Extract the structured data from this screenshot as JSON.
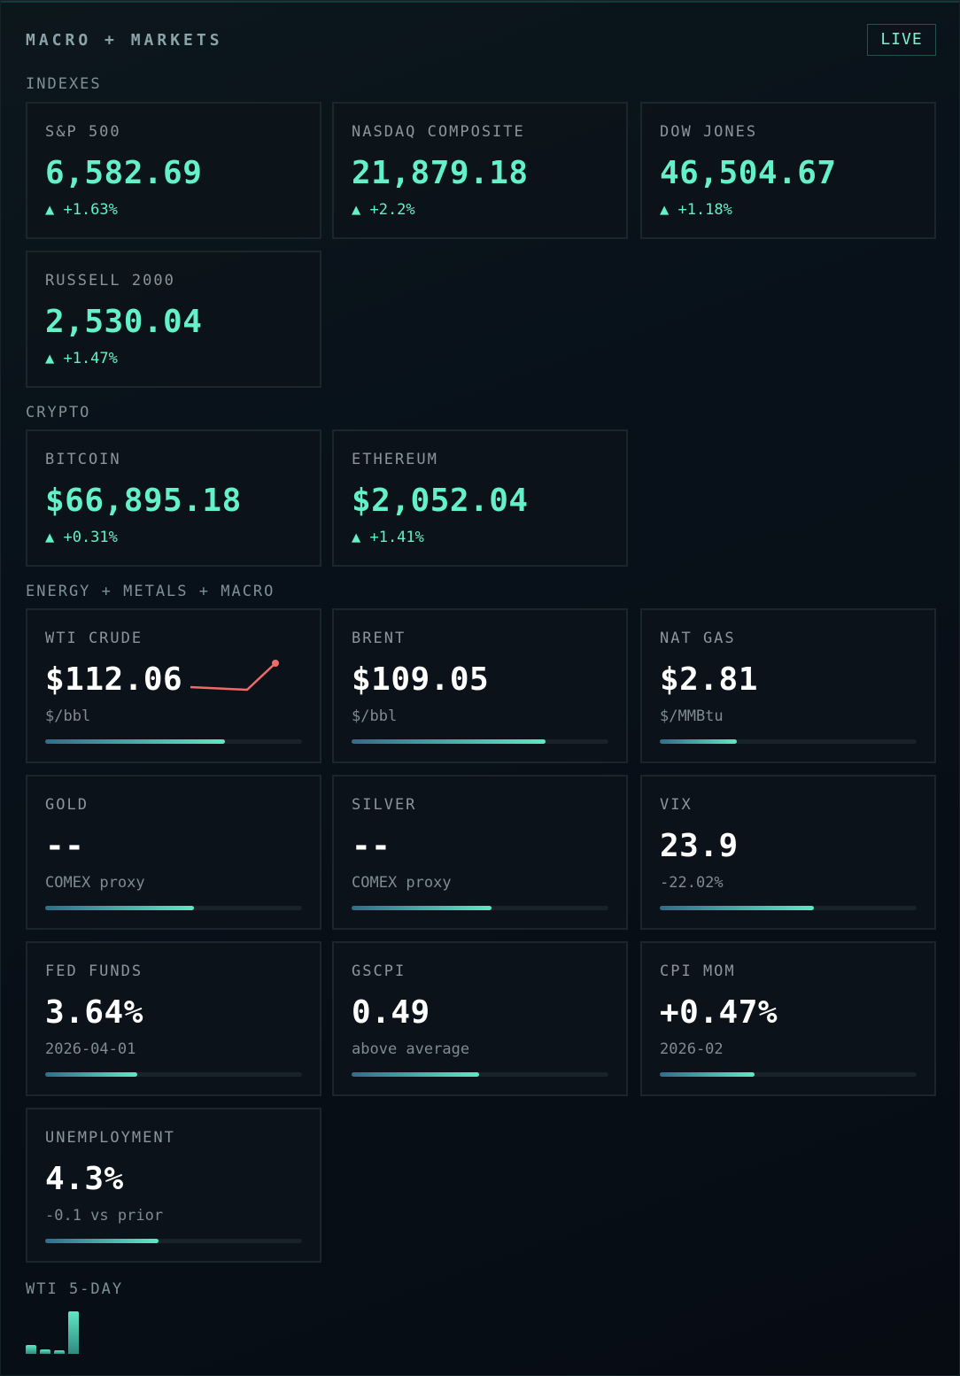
{
  "header": {
    "title": "MACRO + MARKETS",
    "live_label": "LIVE"
  },
  "sections": {
    "indexes": "INDEXES",
    "crypto": "CRYPTO",
    "energy": "ENERGY + METALS + MACRO",
    "wti5": "WTI 5-DAY"
  },
  "indexes": [
    {
      "label": "S&P 500",
      "value": "6,582.69",
      "change": "▲ +1.63%"
    },
    {
      "label": "NASDAQ COMPOSITE",
      "value": "21,879.18",
      "change": "▲ +2.2%"
    },
    {
      "label": "DOW JONES",
      "value": "46,504.67",
      "change": "▲ +1.18%"
    },
    {
      "label": "RUSSELL 2000",
      "value": "2,530.04",
      "change": "▲ +1.47%"
    }
  ],
  "crypto": [
    {
      "label": "BITCOIN",
      "value": "$66,895.18",
      "change": "▲ +0.31%"
    },
    {
      "label": "ETHEREUM",
      "value": "$2,052.04",
      "change": "▲ +1.41%"
    }
  ],
  "macro": [
    {
      "label": "WTI CRUDE",
      "value": "$112.06",
      "sub": "$/bbl",
      "level": 0.7
    },
    {
      "label": "BRENT",
      "value": "$109.05",
      "sub": "$/bbl",
      "level": 0.755
    },
    {
      "label": "NAT GAS",
      "value": "$2.81",
      "sub": "$/MMBtu",
      "level": 0.3
    },
    {
      "label": "GOLD",
      "value": "--",
      "sub": "COMEX proxy",
      "level": 0.58
    },
    {
      "label": "SILVER",
      "value": "--",
      "sub": "COMEX proxy",
      "level": 0.545
    },
    {
      "label": "VIX",
      "value": "23.9",
      "sub": "-22.02%",
      "level": 0.6
    },
    {
      "label": "FED FUNDS",
      "value": "3.64%",
      "sub": "2026-04-01",
      "level": 0.36
    },
    {
      "label": "GSCPI",
      "value": "0.49",
      "sub": "above average",
      "level": 0.495
    },
    {
      "label": "CPI MOM",
      "value": "+0.47%",
      "sub": "2026-02",
      "level": 0.37
    },
    {
      "label": "UNEMPLOYMENT",
      "value": "4.3%",
      "sub": "-0.1 vs prior",
      "level": 0.44
    }
  ],
  "wti_sparkline": {
    "color": "#f06a6a",
    "values": [
      0.1,
      0.05,
      0.0,
      1.0
    ]
  },
  "wti_5day_bars": [
    0.2,
    0.1,
    0.08,
    1.0
  ],
  "colors": {
    "accent": "#64f0c8",
    "down": "#f06a6a",
    "background": "#070c13"
  }
}
